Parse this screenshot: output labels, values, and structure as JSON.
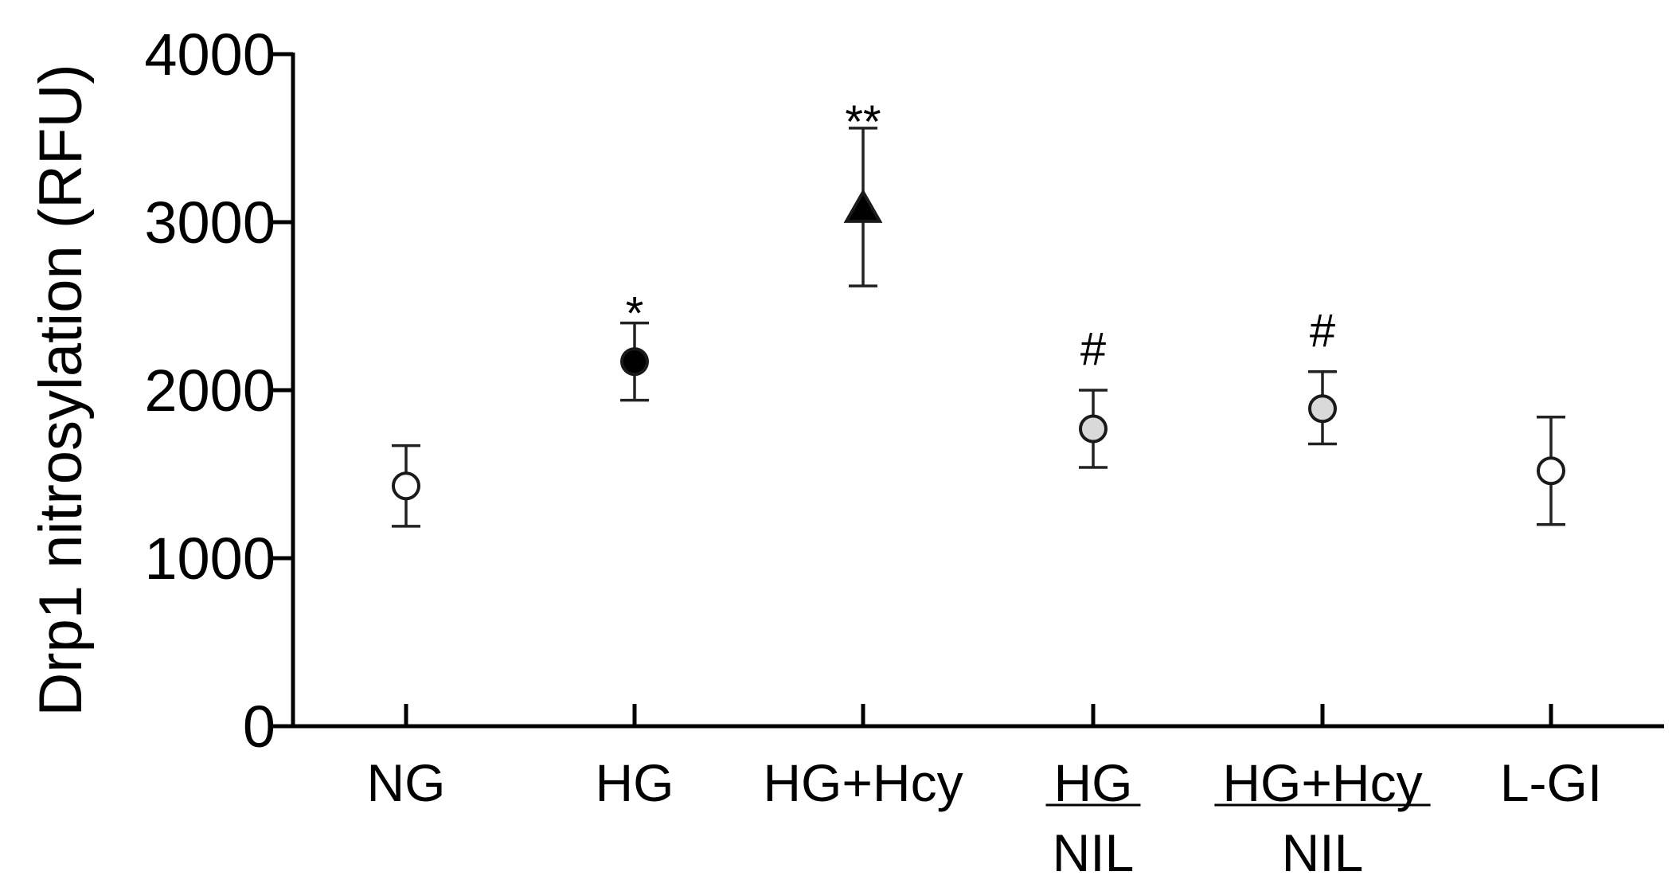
{
  "chart_data": {
    "type": "scatter",
    "title": "",
    "xlabel": "",
    "ylabel": "Drp1 nitrosylation (RFU)",
    "ylim": [
      0,
      4000
    ],
    "yticks": [
      "0",
      "1000",
      "2000",
      "3000",
      "4000"
    ],
    "grid": false,
    "categories": [
      {
        "lines": [
          "NG"
        ],
        "underline_first": false
      },
      {
        "lines": [
          "HG"
        ],
        "underline_first": false
      },
      {
        "lines": [
          "HG+Hcy"
        ],
        "underline_first": false
      },
      {
        "lines": [
          "HG",
          "NIL"
        ],
        "underline_first": true
      },
      {
        "lines": [
          "HG+Hcy",
          "NIL"
        ],
        "underline_first": true
      },
      {
        "lines": [
          "L-GI"
        ],
        "underline_first": false
      }
    ],
    "points": [
      {
        "category": "NG",
        "value": 1430,
        "err_low": 1190,
        "err_high": 1670,
        "marker": "circle",
        "fill": "#ffffff",
        "annotation": ""
      },
      {
        "category": "HG",
        "value": 2170,
        "err_low": 1940,
        "err_high": 2400,
        "marker": "circle",
        "fill": "#000000",
        "annotation": "*"
      },
      {
        "category": "HG+Hcy",
        "value": 3080,
        "err_low": 2620,
        "err_high": 3560,
        "marker": "triangle",
        "fill": "#000000",
        "annotation": "**"
      },
      {
        "category": "HG NIL",
        "value": 1770,
        "err_low": 1540,
        "err_high": 2000,
        "marker": "circle",
        "fill": "#d9d9d9",
        "annotation": "#"
      },
      {
        "category": "HG+Hcy NIL",
        "value": 1890,
        "err_low": 1680,
        "err_high": 2110,
        "marker": "circle",
        "fill": "#d9d9d9",
        "annotation": "#"
      },
      {
        "category": "L-GI",
        "value": 1520,
        "err_low": 1200,
        "err_high": 1840,
        "marker": "circle",
        "fill": "#ffffff",
        "annotation": ""
      }
    ]
  }
}
